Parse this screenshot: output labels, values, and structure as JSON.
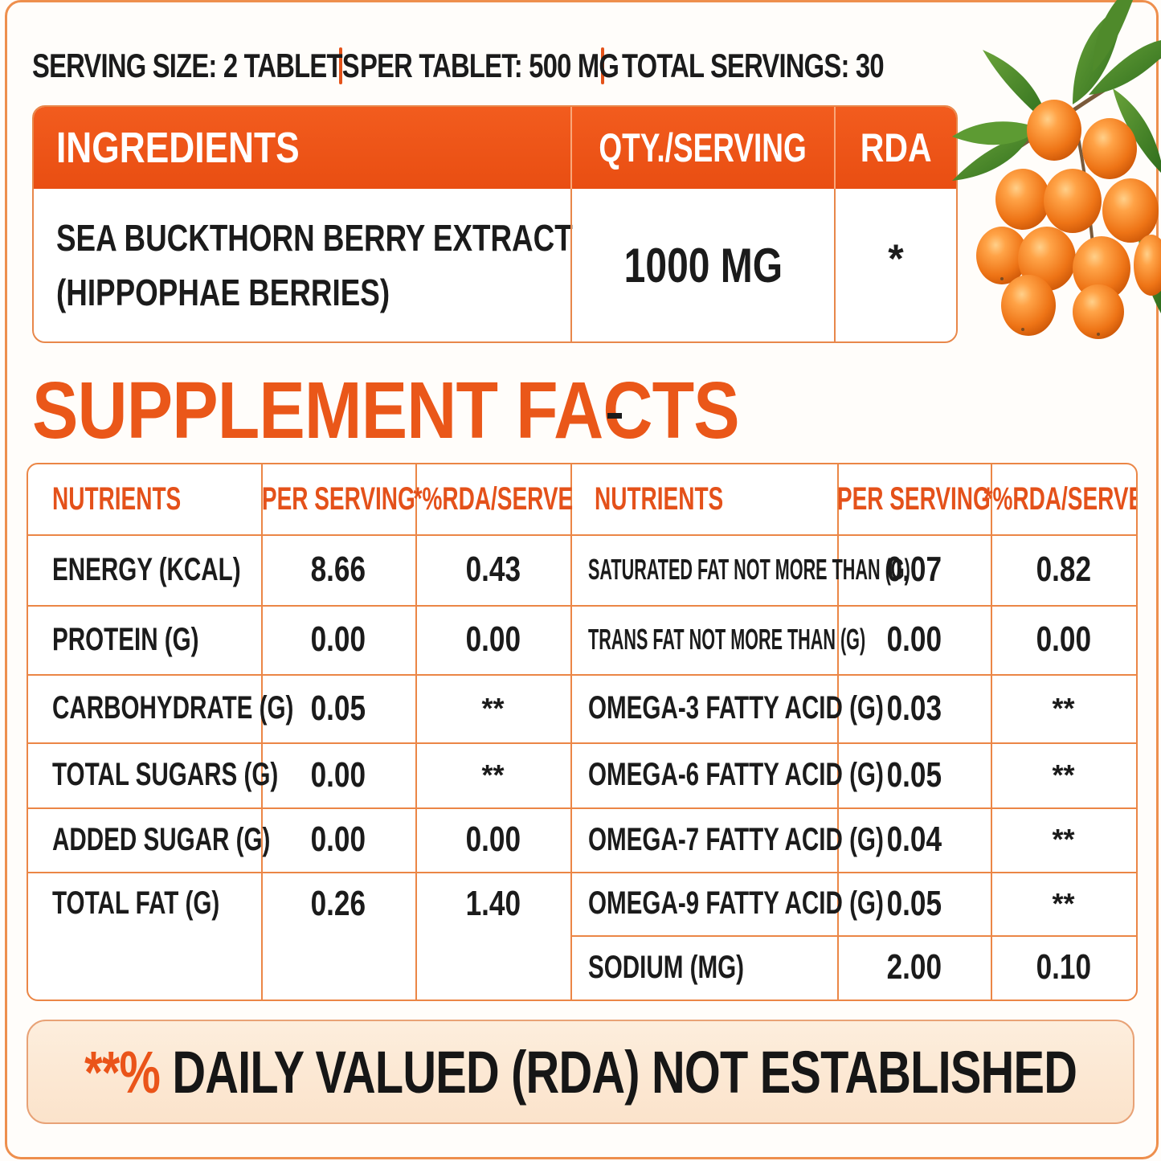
{
  "colors": {
    "accent": "#ea5719",
    "border": "#eb8646",
    "text": "#1b1b1b",
    "footer_bg": "#fdeedd"
  },
  "serving": {
    "size": "SERVING SIZE: 2 TABLETS",
    "per_tablet": "PER TABLET: 500 MG",
    "total": "TOTAL SERVINGS: 30"
  },
  "ingredients": {
    "headers": [
      "INGREDIENTS",
      "QTY./SERVING",
      "RDA"
    ],
    "rows": [
      {
        "name_line1": "SEA BUCKTHORN BERRY EXTRACT",
        "name_line2": "(HIPPOPHAE BERRIES)",
        "qty": "1000 MG",
        "rda": "*"
      }
    ]
  },
  "supplement_facts": {
    "title": "SUPPLEMENT FACTS"
  },
  "nutrients": {
    "headers": [
      "NUTRIENTS",
      "PER SERVING",
      "*%RDA/SERVE",
      "NUTRIENTS",
      "PER SERVING",
      "*%RDA/SERVE"
    ],
    "left": [
      {
        "name": "ENERGY (KCAL)",
        "per": "8.66",
        "rda": "0.43"
      },
      {
        "name": "PROTEIN (G)",
        "per": "0.00",
        "rda": "0.00"
      },
      {
        "name": "CARBOHYDRATE (G)",
        "per": "0.05",
        "rda": "**"
      },
      {
        "name": "TOTAL SUGARS (G)",
        "per": "0.00",
        "rda": "**"
      },
      {
        "name": "ADDED SUGAR (G)",
        "per": "0.00",
        "rda": "0.00"
      },
      {
        "name": "TOTAL FAT (G)",
        "per": "0.26",
        "rda": "1.40"
      }
    ],
    "right": [
      {
        "name": "SATURATED FAT NOT MORE THAN (G)",
        "per": "0.07",
        "rda": "0.82"
      },
      {
        "name": "TRANS FAT NOT MORE THAN (G)",
        "per": "0.00",
        "rda": "0.00"
      },
      {
        "name": "OMEGA-3 FATTY ACID (G)",
        "per": "0.03",
        "rda": "**"
      },
      {
        "name": "OMEGA-6 FATTY ACID (G)",
        "per": "0.05",
        "rda": "**"
      },
      {
        "name": "OMEGA-7 FATTY ACID (G)",
        "per": "0.04",
        "rda": "**"
      },
      {
        "name": "OMEGA-9 FATTY ACID (G)",
        "per": "0.05",
        "rda": "**"
      },
      {
        "name": "SODIUM (MG)",
        "per": "2.00",
        "rda": "0.10"
      }
    ]
  },
  "footer": {
    "prefix": "**%",
    "text": " DAILY VALUED (RDA) NOT ESTABLISHED"
  },
  "images": {
    "berries": "sea-buckthorn-berries-with-leaves"
  }
}
